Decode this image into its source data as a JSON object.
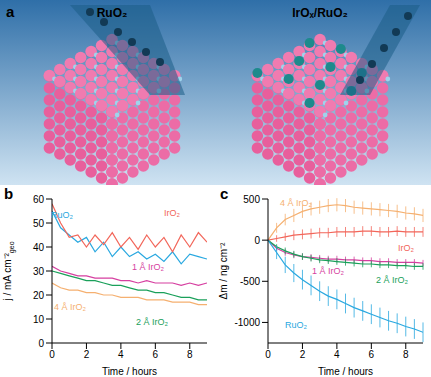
{
  "illustration": {
    "panel_label": "a",
    "titles": [
      "RuO₂",
      "IrOₓ/RuO₂"
    ]
  },
  "chart_data": [
    {
      "type": "line",
      "panel_label": "b",
      "x_label": "Time / hours",
      "y_label": "j / mA cm⁻²",
      "y_label_subscript": "geo",
      "xlim": [
        0,
        9
      ],
      "xticks": [
        0,
        2,
        4,
        6,
        8
      ],
      "ylim": [
        0,
        60
      ],
      "yticks": [
        0,
        10,
        20,
        30,
        40,
        50,
        60
      ],
      "x": [
        0,
        0.5,
        1,
        1.5,
        2,
        2.5,
        3,
        3.5,
        4,
        4.5,
        5,
        5.5,
        6,
        6.5,
        7,
        7.5,
        8,
        8.5,
        9
      ],
      "series": [
        {
          "name": "RuO₂",
          "color": "#29a8e0",
          "values": [
            55,
            48,
            45,
            42,
            44,
            38,
            42,
            36,
            40,
            36,
            38,
            35,
            37,
            34,
            38,
            33,
            37,
            36,
            35
          ]
        },
        {
          "name": "IrO₂",
          "color": "#f2665a",
          "values": [
            58,
            50,
            44,
            45,
            40,
            45,
            41,
            46,
            40,
            44,
            39,
            45,
            40,
            44,
            38,
            45,
            40,
            46,
            42
          ]
        },
        {
          "name": "1 Å IrO₂",
          "color": "#d63fa0",
          "values": [
            32,
            30,
            29,
            28,
            28,
            27,
            27,
            27,
            26,
            26,
            25,
            26,
            25,
            25,
            25,
            24,
            25,
            24,
            25
          ]
        },
        {
          "name": "2 Å IrO₂",
          "color": "#1aa05a",
          "values": [
            30,
            29,
            28,
            27,
            26,
            26,
            25,
            24,
            24,
            23,
            22,
            22,
            21,
            21,
            20,
            19,
            19,
            18,
            18
          ]
        },
        {
          "name": "4 Å IrO₂",
          "color": "#f5b070",
          "values": [
            25,
            23,
            22,
            22,
            21,
            21,
            20,
            20,
            19,
            19,
            19,
            18,
            18,
            18,
            17,
            17,
            17,
            16,
            16
          ]
        }
      ]
    },
    {
      "type": "line",
      "panel_label": "c",
      "x_label": "Time / hours",
      "y_label": "Δm / ng cm⁻²",
      "xlim": [
        0,
        9
      ],
      "xticks": [
        0,
        2,
        4,
        6,
        8
      ],
      "ylim": [
        -1250,
        500
      ],
      "yticks": [
        -1000,
        -500,
        0,
        500
      ],
      "x": [
        0,
        0.5,
        1,
        1.5,
        2,
        2.5,
        3,
        3.5,
        4,
        4.5,
        5,
        5.5,
        6,
        6.5,
        7,
        7.5,
        8,
        8.5,
        9
      ],
      "series": [
        {
          "name": "4 Å IrO₂",
          "color": "#f5b070",
          "values": [
            0,
            150,
            250,
            300,
            350,
            380,
            400,
            420,
            430,
            420,
            400,
            390,
            380,
            370,
            360,
            350,
            330,
            320,
            300
          ],
          "errors": [
            0,
            60,
            70,
            80,
            80,
            80,
            80,
            80,
            80,
            80,
            80,
            80,
            80,
            80,
            80,
            80,
            80,
            80,
            80
          ]
        },
        {
          "name": "IrO₂",
          "color": "#f2665a",
          "values": [
            0,
            20,
            40,
            60,
            70,
            80,
            90,
            90,
            100,
            100,
            100,
            110,
            110,
            100,
            100,
            110,
            100,
            100,
            100
          ],
          "errors": [
            0,
            40,
            50,
            60,
            60,
            60,
            60,
            60,
            60,
            60,
            60,
            60,
            60,
            60,
            60,
            60,
            60,
            60,
            60
          ]
        },
        {
          "name": "1 Å IrO₂",
          "color": "#d63fa0",
          "values": [
            0,
            -100,
            -150,
            -180,
            -200,
            -210,
            -220,
            -230,
            -230,
            -240,
            -240,
            -250,
            -250,
            -260,
            -260,
            -270,
            -270,
            -270,
            -280
          ],
          "errors": [
            0,
            30,
            40,
            40,
            40,
            40,
            40,
            40,
            40,
            40,
            40,
            40,
            40,
            40,
            40,
            40,
            40,
            40,
            40
          ]
        },
        {
          "name": "2 Å IrO₂",
          "color": "#1aa05a",
          "values": [
            0,
            -80,
            -130,
            -170,
            -200,
            -220,
            -240,
            -250,
            -260,
            -270,
            -280,
            -290,
            -290,
            -300,
            -300,
            -310,
            -310,
            -320,
            -320
          ],
          "errors": [
            0,
            30,
            40,
            40,
            40,
            40,
            40,
            40,
            40,
            40,
            40,
            40,
            40,
            40,
            40,
            40,
            40,
            40,
            40
          ]
        },
        {
          "name": "RuO₂",
          "color": "#29a8e0",
          "values": [
            0,
            -150,
            -300,
            -400,
            -480,
            -550,
            -620,
            -680,
            -720,
            -770,
            -820,
            -860,
            -900,
            -940,
            -980,
            -1010,
            -1050,
            -1080,
            -1120
          ],
          "errors": [
            0,
            80,
            100,
            110,
            120,
            120,
            120,
            120,
            120,
            120,
            120,
            120,
            120,
            120,
            120,
            120,
            120,
            120,
            120
          ]
        }
      ]
    }
  ]
}
